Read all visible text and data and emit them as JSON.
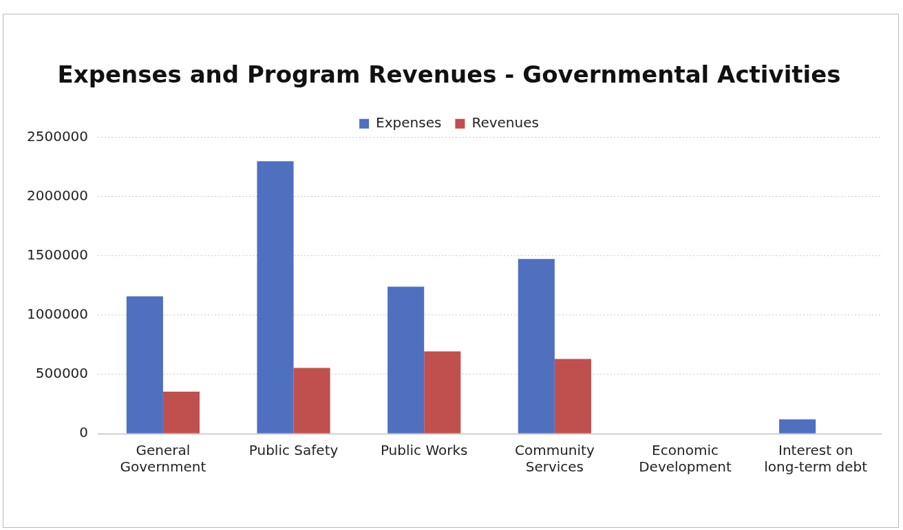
{
  "chart_data": {
    "type": "bar",
    "title": "Expenses and Program Revenues - Governmental Activities",
    "categories": [
      "General Government",
      "Public Safety",
      "Public Works",
      "Community Services",
      "Economic Development",
      "Interest on long-term debt"
    ],
    "series": [
      {
        "name": "Expenses",
        "color": "#4f6fbf",
        "values": [
          1160000,
          2300000,
          1240000,
          1475000,
          0,
          120000
        ]
      },
      {
        "name": "Revenues",
        "color": "#c0504d",
        "values": [
          355000,
          555000,
          695000,
          630000,
          0,
          0
        ]
      }
    ],
    "ylim": [
      0,
      2500000
    ],
    "yticks": [
      0,
      500000,
      1000000,
      1500000,
      2000000,
      2500000
    ],
    "grid": "y",
    "legend": "top"
  }
}
